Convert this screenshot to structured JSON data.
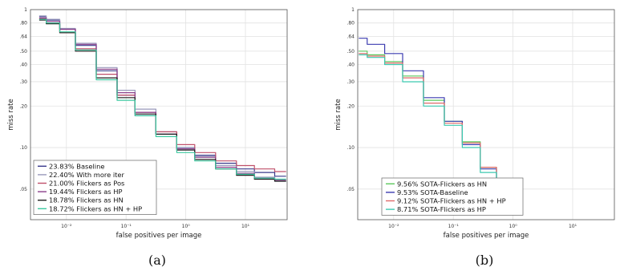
{
  "chart_data": [
    {
      "type": "line",
      "caption": "(a)",
      "xlabel": "false positives per image",
      "ylabel": "miss rate",
      "xscale": "log",
      "yscale": "log",
      "xlim": [
        0.0025,
        50
      ],
      "ylim": [
        0.03,
        1
      ],
      "xticks": [
        {
          "value": 0.01,
          "label": "10⁻²"
        },
        {
          "value": 0.1,
          "label": "10⁻¹"
        },
        {
          "value": 1,
          "label": "10⁰"
        },
        {
          "value": 10,
          "label": "10¹"
        }
      ],
      "yticks": [
        {
          "value": 1,
          "label": "1"
        },
        {
          "value": 0.8,
          "label": ".80"
        },
        {
          "value": 0.64,
          "label": ".64"
        },
        {
          "value": 0.5,
          "label": ".50"
        },
        {
          "value": 0.4,
          "label": ".40"
        },
        {
          "value": 0.3,
          "label": ".30"
        },
        {
          "value": 0.2,
          "label": ".20"
        },
        {
          "value": 0.1,
          "label": ".10"
        },
        {
          "value": 0.05,
          "label": ".05"
        }
      ],
      "grid": true,
      "legend_position": "bottom-left",
      "series": [
        {
          "name": "23.83% Baseline",
          "color": "#3a3a8c",
          "x": [
            0.0035,
            0.006,
            0.01,
            0.02,
            0.05,
            0.1,
            0.2,
            0.5,
            1,
            2,
            5,
            10,
            20,
            48
          ],
          "y": [
            0.89,
            0.84,
            0.72,
            0.55,
            0.36,
            0.24,
            0.17,
            0.125,
            0.1,
            0.088,
            0.077,
            0.07,
            0.066,
            0.062
          ]
        },
        {
          "name": "22.40% With more iter",
          "color": "#9999bb",
          "x": [
            0.0035,
            0.006,
            0.01,
            0.02,
            0.05,
            0.1,
            0.2,
            0.5,
            1,
            2,
            5,
            10,
            20,
            48
          ],
          "y": [
            0.9,
            0.85,
            0.73,
            0.57,
            0.38,
            0.26,
            0.19,
            0.13,
            0.1,
            0.086,
            0.074,
            0.067,
            0.061,
            0.057
          ]
        },
        {
          "name": "21.00% Flickers as Pos",
          "color": "#c0506a",
          "x": [
            0.0035,
            0.006,
            0.01,
            0.02,
            0.05,
            0.1,
            0.2,
            0.5,
            1,
            2,
            5,
            10,
            20,
            48
          ],
          "y": [
            0.86,
            0.8,
            0.68,
            0.52,
            0.34,
            0.24,
            0.18,
            0.13,
            0.105,
            0.092,
            0.08,
            0.074,
            0.07,
            0.067
          ]
        },
        {
          "name": "19.44% Flickers as HP",
          "color": "#8a3f8a",
          "x": [
            0.0035,
            0.006,
            0.01,
            0.02,
            0.05,
            0.1,
            0.2,
            0.5,
            1,
            2,
            5,
            10,
            20,
            48
          ],
          "y": [
            0.87,
            0.82,
            0.72,
            0.56,
            0.37,
            0.25,
            0.18,
            0.125,
            0.098,
            0.085,
            0.072,
            0.065,
            0.06,
            0.058
          ]
        },
        {
          "name": "18.78% Flickers as HN",
          "color": "#1f1f1f",
          "x": [
            0.0035,
            0.006,
            0.01,
            0.02,
            0.05,
            0.1,
            0.2,
            0.5,
            1,
            2,
            5,
            10,
            20,
            48
          ],
          "y": [
            0.84,
            0.79,
            0.68,
            0.5,
            0.32,
            0.23,
            0.175,
            0.125,
            0.096,
            0.082,
            0.07,
            0.063,
            0.059,
            0.057
          ]
        },
        {
          "name": "18.72% Flickers as HN + HP",
          "color": "#3cc9a0",
          "x": [
            0.0035,
            0.006,
            0.01,
            0.02,
            0.05,
            0.1,
            0.2,
            0.5,
            1,
            2,
            5,
            10,
            20,
            48
          ],
          "y": [
            0.85,
            0.8,
            0.69,
            0.51,
            0.31,
            0.22,
            0.17,
            0.12,
            0.092,
            0.08,
            0.07,
            0.064,
            0.06,
            0.059
          ]
        }
      ]
    },
    {
      "type": "line",
      "caption": "(b)",
      "xlabel": "false positives per image",
      "ylabel": "miss rate",
      "xscale": "log",
      "yscale": "log",
      "xlim": [
        0.0025,
        50
      ],
      "ylim": [
        0.03,
        1
      ],
      "xticks": [
        {
          "value": 0.01,
          "label": "10⁻²"
        },
        {
          "value": 0.1,
          "label": "10⁻¹"
        },
        {
          "value": 1,
          "label": "10⁰"
        },
        {
          "value": 10,
          "label": "10¹"
        }
      ],
      "yticks": [
        {
          "value": 1,
          "label": "1"
        },
        {
          "value": 0.8,
          "label": ".80"
        },
        {
          "value": 0.64,
          "label": ".64"
        },
        {
          "value": 0.5,
          "label": ".50"
        },
        {
          "value": 0.4,
          "label": ".40"
        },
        {
          "value": 0.3,
          "label": ".30"
        },
        {
          "value": 0.2,
          "label": ".20"
        },
        {
          "value": 0.1,
          "label": ".10"
        },
        {
          "value": 0.05,
          "label": ".05"
        }
      ],
      "grid": true,
      "legend_position": "bottom-left",
      "series": [
        {
          "name": "9.56% SOTA-Flickers as HN",
          "color": "#5cc85c",
          "x": [
            0.0026,
            0.005,
            0.01,
            0.02,
            0.05,
            0.1,
            0.2,
            0.4,
            0.7,
            1.0
          ],
          "y": [
            0.5,
            0.47,
            0.42,
            0.33,
            0.22,
            0.155,
            0.11,
            0.072,
            0.052,
            0.04
          ]
        },
        {
          "name": "9.53% SOTA-Baseline",
          "color": "#3c3cb0",
          "x": [
            0.0026,
            0.005,
            0.01,
            0.02,
            0.05,
            0.1,
            0.2,
            0.4,
            0.7,
            1.0
          ],
          "y": [
            0.62,
            0.56,
            0.48,
            0.36,
            0.23,
            0.155,
            0.105,
            0.07,
            0.05,
            0.04
          ]
        },
        {
          "name": "9.12% SOTA-Flickers as HN + HP",
          "color": "#e06a6a",
          "x": [
            0.0026,
            0.005,
            0.01,
            0.02,
            0.05,
            0.1,
            0.2,
            0.4,
            0.7,
            1.0
          ],
          "y": [
            0.48,
            0.46,
            0.41,
            0.32,
            0.21,
            0.15,
            0.108,
            0.072,
            0.052,
            0.04
          ]
        },
        {
          "name": "8.71% SOTA-Flickers as HP",
          "color": "#3cc9b0",
          "x": [
            0.0026,
            0.005,
            0.01,
            0.02,
            0.05,
            0.1,
            0.2,
            0.4,
            0.7,
            1.0
          ],
          "y": [
            0.47,
            0.45,
            0.4,
            0.3,
            0.2,
            0.145,
            0.1,
            0.066,
            0.048,
            0.04
          ]
        }
      ]
    }
  ]
}
